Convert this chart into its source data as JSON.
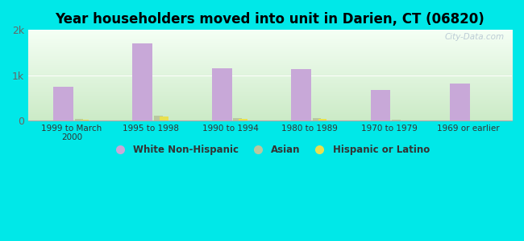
{
  "title": "Year householders moved into unit in Darien, CT (06820)",
  "categories": [
    "1999 to March\n2000",
    "1995 to 1998",
    "1990 to 1994",
    "1980 to 1989",
    "1970 to 1979",
    "1969 or earlier"
  ],
  "white_non_hispanic": [
    750,
    1700,
    1150,
    1130,
    680,
    820
  ],
  "asian": [
    35,
    100,
    45,
    45,
    10,
    8
  ],
  "hispanic_or_latino": [
    22,
    90,
    35,
    40,
    7,
    6
  ],
  "white_color": "#c8a8d8",
  "asian_color": "#b8c8a0",
  "hispanic_color": "#e8e050",
  "bg_outer": "#00e8e8",
  "bg_plot_top": "#f0faf0",
  "bg_plot_bottom": "#c8e8c0",
  "ylim": [
    0,
    2000
  ],
  "yticks": [
    0,
    1000,
    2000
  ],
  "ytick_labels": [
    "0",
    "1k",
    "2k"
  ],
  "bar_width": 0.18,
  "watermark": "City-Data.com"
}
